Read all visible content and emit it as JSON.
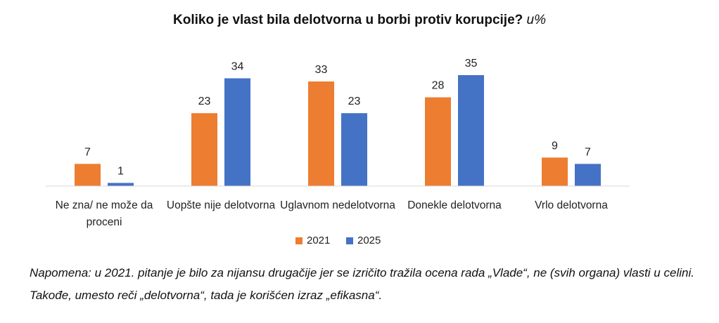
{
  "chart_data": {
    "type": "bar",
    "title": "Koliko je vlast bila delotvorna u borbi protiv korupcije?",
    "title_unit": "u%",
    "categories": [
      "Ne zna/ ne može da proceni",
      "Uopšte nije delotvorna",
      "Uglavnom nedelotvorna",
      "Donekle delotvorna",
      "Vrlo delotvorna"
    ],
    "series": [
      {
        "name": "2021",
        "color": "#ed7d31",
        "values": [
          7,
          23,
          33,
          28,
          9
        ]
      },
      {
        "name": "2025",
        "color": "#4472c4",
        "values": [
          1,
          34,
          23,
          35,
          7
        ]
      }
    ],
    "ylim": [
      0,
      35
    ],
    "legend": "bottom",
    "note": "Napomena: u 2021. pitanje je bilo za nijansu drugačije jer se izričito tražila ocena rada „Vlade“, ne (svih organa) vlasti u celini. Takođe, umesto reči „delotvorna“, tada je korišćen izraz „efikasna“."
  }
}
